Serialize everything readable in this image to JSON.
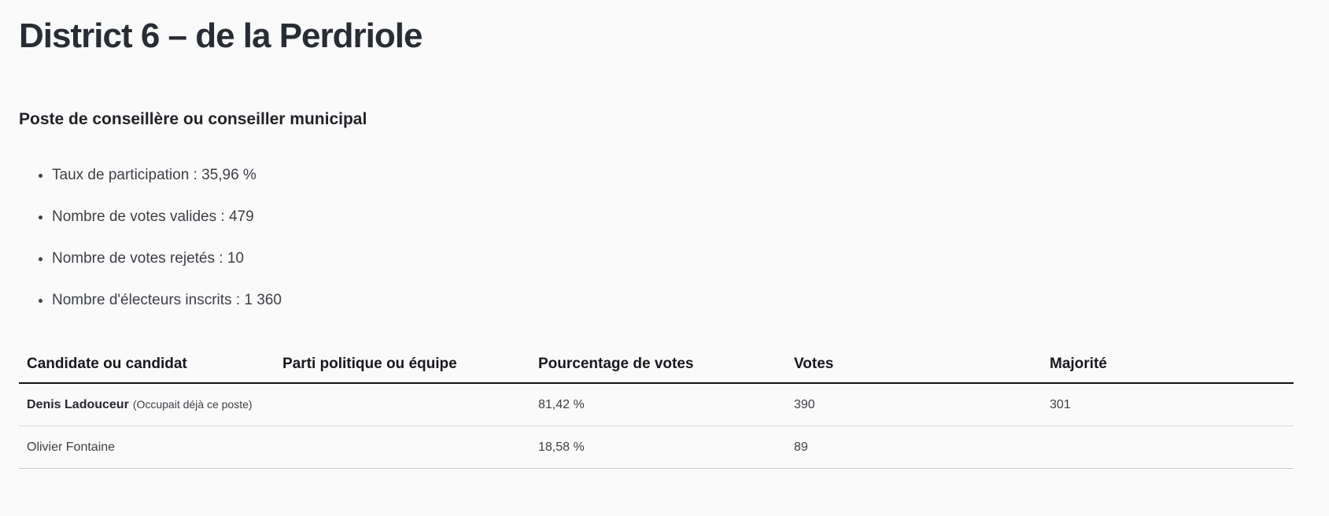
{
  "page": {
    "title": "District 6 – de la Perdriole",
    "subtitle": "Poste de conseillère ou conseiller municipal"
  },
  "stats": {
    "items": [
      "Taux de participation : 35,96 %",
      "Nombre de votes valides : 479",
      "Nombre de votes rejetés : 10",
      "Nombre d'électeurs inscrits : 1 360"
    ]
  },
  "results_table": {
    "columns": [
      "Candidate ou candidat",
      "Parti politique ou équipe",
      "Pourcentage de votes",
      "Votes",
      "Majorité"
    ],
    "rows": [
      {
        "candidate": "Denis Ladouceur",
        "note": "(Occupait déjà ce poste)",
        "party": "",
        "percentage": "81,42 %",
        "votes": "390",
        "majority": "301"
      },
      {
        "candidate": "Olivier Fontaine",
        "note": "",
        "party": "",
        "percentage": "18,58 %",
        "votes": "89",
        "majority": ""
      }
    ]
  },
  "colors": {
    "background": "#fafafa",
    "heading_text": "#282c34",
    "body_text": "#3d4046",
    "header_rule": "#101214",
    "row_rule": "#d8d8db"
  }
}
